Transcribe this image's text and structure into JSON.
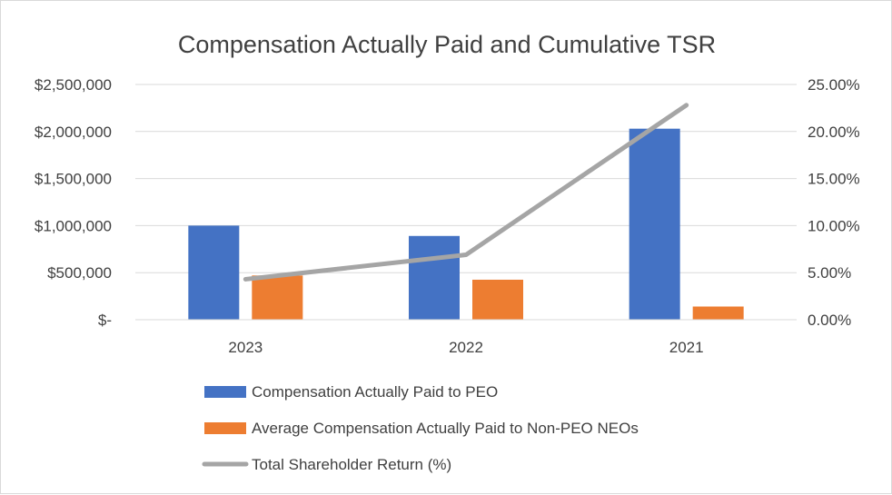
{
  "chart_data": {
    "type": "bar",
    "title": "Compensation Actually Paid and Cumulative TSR",
    "categories": [
      "2023",
      "2022",
      "2021"
    ],
    "series": [
      {
        "name": "Compensation Actually Paid to PEO",
        "kind": "bar",
        "axis": "left",
        "color": "#4472c4",
        "values": [
          1000000,
          890000,
          2030000
        ]
      },
      {
        "name": "Average Compensation Actually Paid to Non-PEO NEOs",
        "kind": "bar",
        "axis": "left",
        "color": "#ed7d31",
        "values": [
          470000,
          425000,
          140000
        ]
      },
      {
        "name": "Total Shareholder Return (%)",
        "kind": "line",
        "axis": "right",
        "color": "#a5a5a5",
        "values": [
          4.3,
          6.9,
          22.8
        ]
      }
    ],
    "y_left": {
      "ylim": [
        0,
        2500000
      ],
      "ticks": [
        0,
        500000,
        1000000,
        1500000,
        2000000,
        2500000
      ],
      "tick_labels": [
        "$-",
        "$500,000",
        "$1,000,000",
        "$1,500,000",
        "$2,000,000",
        "$2,500,000"
      ]
    },
    "y_right": {
      "ylim": [
        0,
        25
      ],
      "ticks": [
        0,
        5,
        10,
        15,
        20,
        25
      ],
      "tick_labels": [
        "0.00%",
        "5.00%",
        "10.00%",
        "15.00%",
        "20.00%",
        "25.00%"
      ]
    },
    "grid": true,
    "legend_position": "bottom"
  }
}
